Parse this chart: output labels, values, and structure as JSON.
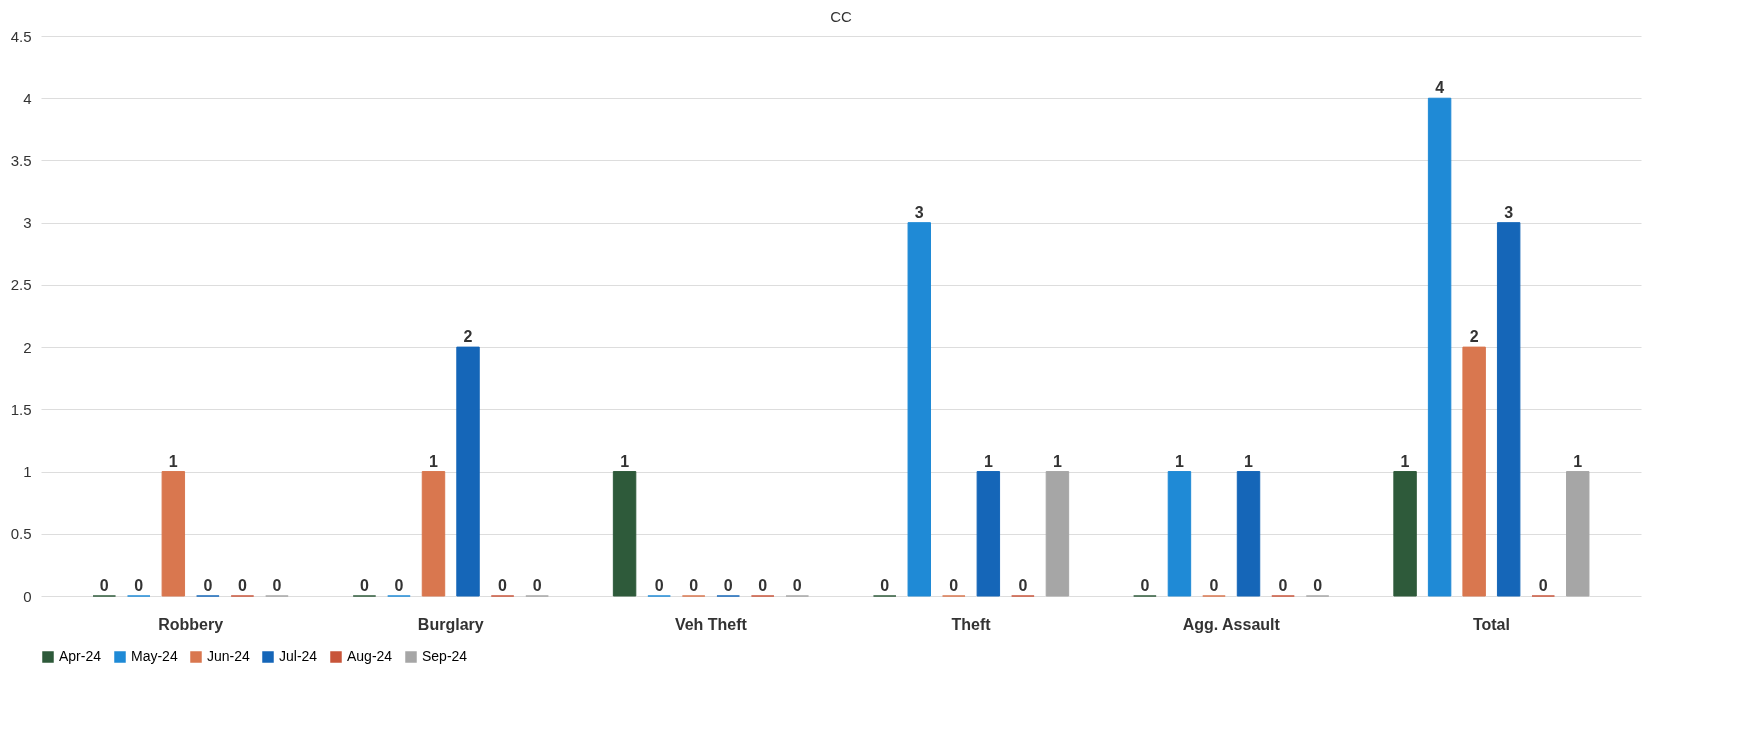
{
  "chart_data": {
    "type": "bar",
    "title": "CC",
    "categories": [
      "Robbery",
      "Burglary",
      "Veh Theft",
      "Theft",
      "Agg. Assault",
      "Total"
    ],
    "series": [
      {
        "name": "Apr-24",
        "color": "#2e5a3a",
        "values": [
          0,
          0,
          1,
          0,
          0,
          1
        ]
      },
      {
        "name": "May-24",
        "color": "#1f8ad6",
        "values": [
          0,
          0,
          0,
          3,
          1,
          4
        ]
      },
      {
        "name": "Jun-24",
        "color": "#d9774f",
        "values": [
          1,
          1,
          0,
          0,
          0,
          2
        ]
      },
      {
        "name": "Jul-24",
        "color": "#1566b8",
        "values": [
          0,
          2,
          0,
          1,
          1,
          3
        ]
      },
      {
        "name": "Aug-24",
        "color": "#c8553a",
        "values": [
          0,
          0,
          0,
          0,
          0,
          0
        ]
      },
      {
        "name": "Sep-24",
        "color": "#a6a6a6",
        "values": [
          0,
          0,
          0,
          1,
          0,
          1
        ]
      }
    ],
    "ylim": [
      0,
      4.5
    ],
    "yticks": [
      0,
      0.5,
      1,
      1.5,
      2,
      2.5,
      3,
      3.5,
      4,
      4.5
    ],
    "grid": "y",
    "legend": "bottom left",
    "data_labels": true
  }
}
